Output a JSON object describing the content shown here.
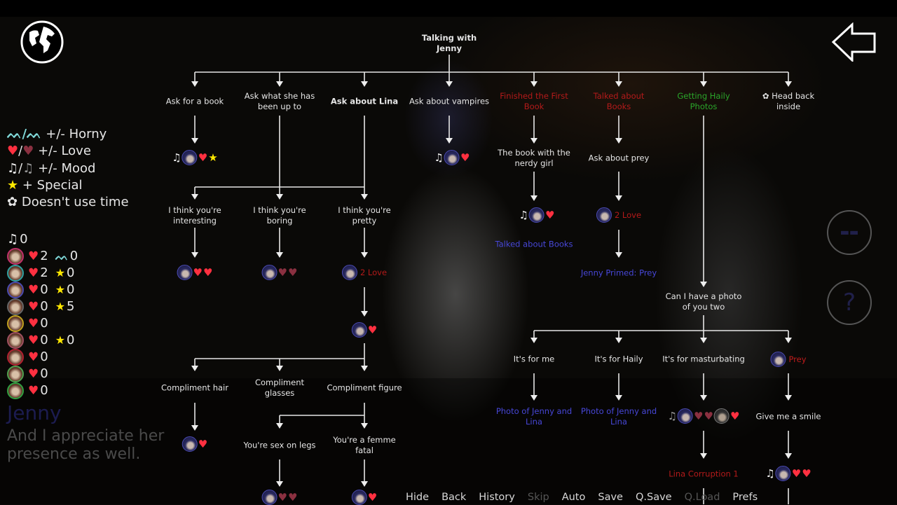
{
  "dialogue": {
    "speaker": "Jenny",
    "text": "And I appreciate her presence as well."
  },
  "legend": [
    {
      "icons": [
        "horny",
        "horny-minus"
      ],
      "label": "+/- Horny"
    },
    {
      "icons": [
        "heart",
        "broken-heart"
      ],
      "label": "+/- Love"
    },
    {
      "icons": [
        "music",
        "broken-music"
      ],
      "label": "+/- Mood"
    },
    {
      "icons": [
        "star"
      ],
      "label": "+ Special"
    },
    {
      "icons": [
        "time"
      ],
      "label": "Doesn't use time"
    }
  ],
  "stats": {
    "mood": "0",
    "characters": [
      {
        "ring": "#c0306a",
        "love": "2",
        "extra_icon": "horny",
        "extra": "0"
      },
      {
        "ring": "#30a0a0",
        "love": "2",
        "extra_icon": "star",
        "extra": "0"
      },
      {
        "ring": "#4a4ab0",
        "love": "0",
        "extra_icon": "star",
        "extra": "0"
      },
      {
        "ring": "#666666",
        "love": "0",
        "extra_icon": "star",
        "extra": "5"
      },
      {
        "ring": "#c0a020",
        "love": "0"
      },
      {
        "ring": "#a05060",
        "love": "0",
        "extra_icon": "star",
        "extra": "0"
      },
      {
        "ring": "#b02030",
        "love": "0"
      },
      {
        "ring": "#50a050",
        "love": "0"
      },
      {
        "ring": "#30a040",
        "love": "0"
      }
    ]
  },
  "tree": {
    "root": "Talking with Jenny",
    "nodes": {
      "ask_book": "Ask for a book",
      "ask_up_to": "Ask what she has been up to",
      "ask_lina": "Ask about Lina",
      "ask_vampires": "Ask about vampires",
      "finished_book": "Finished the First Book",
      "talked_books": "Talked about Books",
      "haily_photos": "Getting Haily Photos",
      "head_back": "Head back inside",
      "nerdy_girl": "The book with the nerdy girl",
      "ask_prey": "Ask about prey",
      "interesting": "I think you're interesting",
      "boring": "I think you're boring",
      "pretty": "I think you're pretty",
      "talked_books_flag": "Talked about Books",
      "primed_prey": "Jenny Primed: Prey",
      "compliment_hair": "Compliment hair",
      "compliment_glasses": "Compliment glasses",
      "compliment_figure": "Compliment figure",
      "sex_on_legs": "You're sex on legs",
      "femme_fatal": "You're a femme fatal",
      "photo_two": "Can I have a photo of you two",
      "for_me": "It's for me",
      "for_haily": "It's for Haily",
      "for_masturbating": "It's for masturbating",
      "photo_flag_1": "Photo of Jenny and Lina",
      "photo_flag_2": "Photo of Jenny and Lina",
      "smile": "Give me a smile",
      "lina_corruption": "Lina Corruption 1"
    },
    "effects": {
      "book": [
        "music",
        "avatar",
        "heart",
        "star"
      ],
      "vampires": [
        "music",
        "avatar",
        "heart"
      ],
      "nerdy": [
        "music",
        "avatar",
        "heart"
      ],
      "prey": [
        "avatar",
        {
          "text": "2 Love"
        }
      ],
      "interesting": [
        "avatar",
        "heart",
        "heart"
      ],
      "boring": [
        "avatar",
        "broken-heart",
        "broken-heart"
      ],
      "pretty": [
        "avatar",
        {
          "text": "2 Love"
        }
      ],
      "pretty2": [
        "avatar",
        "heart"
      ],
      "hair": [
        "avatar",
        "heart"
      ],
      "legs": [
        "avatar",
        "broken-heart",
        "broken-heart"
      ],
      "femme": [
        "avatar",
        "heart"
      ],
      "prey_req": [
        "avatar",
        {
          "text": "Prey"
        }
      ],
      "masturbating": [
        "broken-music",
        "avatar",
        "broken-heart",
        "broken-heart",
        "avatar-dark",
        "heart"
      ],
      "smile": [
        "music",
        "avatar",
        "heart",
        "heart"
      ]
    }
  },
  "quick_menu": [
    {
      "label": "Hide",
      "enabled": true
    },
    {
      "label": "Back",
      "enabled": true
    },
    {
      "label": "History",
      "enabled": true
    },
    {
      "label": "Skip",
      "enabled": false
    },
    {
      "label": "Auto",
      "enabled": true
    },
    {
      "label": "Save",
      "enabled": true
    },
    {
      "label": "Q.Save",
      "enabled": true
    },
    {
      "label": "Q.Load",
      "enabled": false
    },
    {
      "label": "Prefs",
      "enabled": true
    }
  ],
  "colors": {
    "required_flag": "#b41a1a",
    "route": "#2aa52a",
    "sets_flag": "#4747d8",
    "heart": "#ff3040",
    "star": "#ffe800"
  }
}
